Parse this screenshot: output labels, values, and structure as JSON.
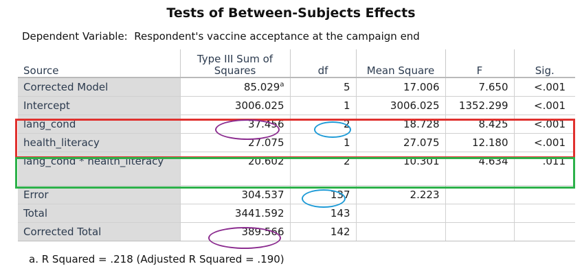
{
  "title": "Tests of Between-Subjects Effects",
  "dependent_variable": {
    "label": "Dependent Variable:",
    "value": "Respondent's vaccine acceptance at the campaign end"
  },
  "columns": {
    "source": "Source",
    "ss_line1": "Type III Sum of",
    "ss_line2": "Squares",
    "df": "df",
    "ms": "Mean Square",
    "f": "F",
    "sig": "Sig."
  },
  "rows": [
    {
      "source": "Corrected Model",
      "ss": "85.029",
      "ss_note": "a",
      "df": "5",
      "ms": "17.006",
      "f": "7.650",
      "sig": "<.001"
    },
    {
      "source": "Intercept",
      "ss": "3006.025",
      "df": "1",
      "ms": "3006.025",
      "f": "1352.299",
      "sig": "<.001"
    },
    {
      "source": "lang_cond",
      "ss": "37.456",
      "df": "2",
      "ms": "18.728",
      "f": "8.425",
      "sig": "<.001"
    },
    {
      "source": "health_literacy",
      "ss": "27.075",
      "df": "1",
      "ms": "27.075",
      "f": "12.180",
      "sig": "<.001"
    },
    {
      "source": "lang_cond * health_literacy",
      "ss": "20.602",
      "df": "2",
      "ms": "10.301",
      "f": "4.634",
      "sig": ".011"
    },
    {
      "source": "Error",
      "ss": "304.537",
      "df": "137",
      "ms": "2.223",
      "f": "",
      "sig": ""
    },
    {
      "source": "Total",
      "ss": "3441.592",
      "df": "143",
      "ms": "",
      "f": "",
      "sig": ""
    },
    {
      "source": "Corrected Total",
      "ss": "389.566",
      "df": "142",
      "ms": "",
      "f": "",
      "sig": ""
    }
  ],
  "footnote": "a. R Squared = .218 (Adjusted R Squared = .190)",
  "annotation_colors": {
    "red_box": "#e0312e",
    "green_box": "#2db14a",
    "purple_oval": "#8b2c8f",
    "cyan_oval": "#1e9bd7"
  }
}
